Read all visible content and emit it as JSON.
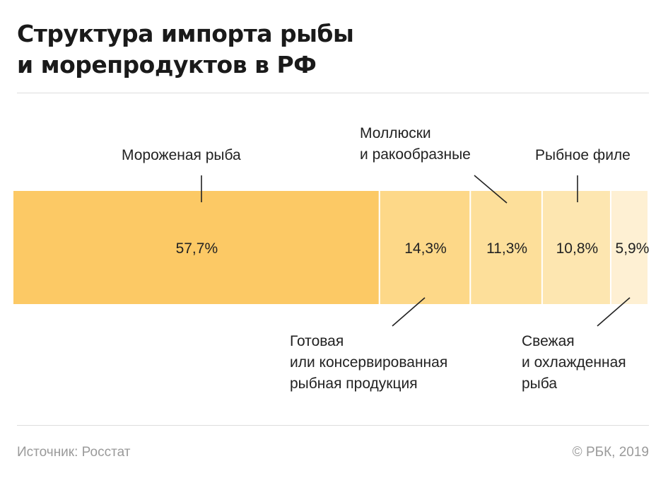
{
  "title_line1": "Структура импорта рыбы",
  "title_line2": "и морепродуктов в РФ",
  "chart_data": {
    "type": "bar",
    "orientation": "horizontal-stacked-100",
    "categories": [
      "Мороженая рыба",
      "Готовая\nили консервированная\nрыбная продукция",
      "Моллюски\nи ракообразные",
      "Рыбное филе",
      "Свежая\nи охлажденная\nрыба"
    ],
    "values": [
      57.7,
      14.3,
      11.3,
      10.8,
      5.9
    ],
    "value_labels": [
      "57,7%",
      "14,3%",
      "11,3%",
      "10,8%",
      "5,9%"
    ],
    "colors": [
      "#fcc965",
      "#fdd888",
      "#fddf9a",
      "#fde6b0",
      "#fef0d3"
    ],
    "label_positions": [
      "above",
      "below",
      "above",
      "above",
      "below"
    ],
    "xlim": [
      0,
      100
    ]
  },
  "source": "Источник: Росстат",
  "copyright": "© РБК, 2019"
}
